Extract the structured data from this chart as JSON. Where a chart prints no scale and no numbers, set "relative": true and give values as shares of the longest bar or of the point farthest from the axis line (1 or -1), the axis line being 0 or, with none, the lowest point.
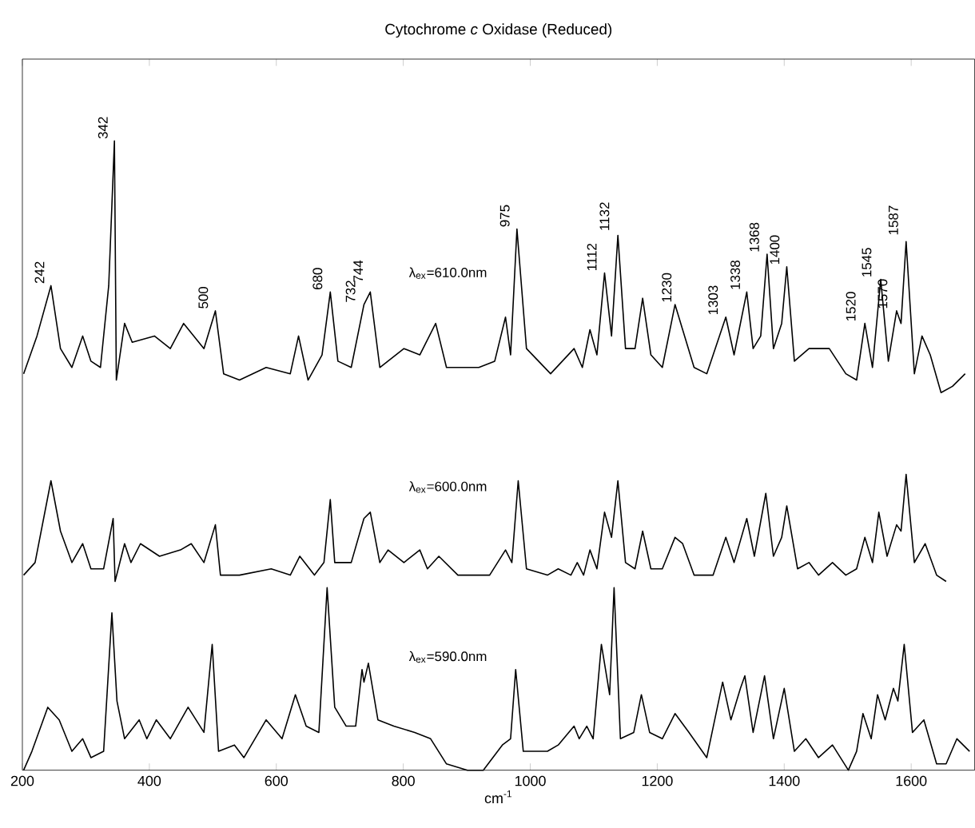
{
  "chart_data": {
    "type": "line",
    "title": "Cytochrome *c* Oxidase (Reduced)",
    "xlabel": "cm$^{-1}$",
    "relative": true,
    "xlim": [
      200,
      1700
    ],
    "xticks": [
      200,
      400,
      600,
      800,
      1000,
      1200,
      1400,
      1600
    ],
    "series": [
      {
        "name": "λ$_{ex}$=610.0nm",
        "color": "#000000",
        "x": [
          202,
          223,
          245,
          260,
          278,
          295,
          308,
          323,
          336,
          345,
          348,
          361,
          373,
          408,
          433,
          454,
          486,
          504,
          517,
          542,
          584,
          622,
          635,
          650,
          672,
          685,
          697,
          718,
          738,
          748,
          763,
          801,
          826,
          851,
          868,
          919,
          944,
          961,
          969,
          979,
          994,
          1032,
          1069,
          1082,
          1094,
          1105,
          1117,
          1128,
          1138,
          1150,
          1165,
          1177,
          1190,
          1208,
          1228,
          1240,
          1258,
          1278,
          1308,
          1321,
          1341,
          1351,
          1363,
          1373,
          1383,
          1396,
          1404,
          1416,
          1439,
          1471,
          1497,
          1514,
          1527,
          1539,
          1552,
          1564,
          1577,
          1584,
          1592,
          1605,
          1617,
          1630,
          1647,
          1665,
          1685
        ],
        "values": [
          0.63,
          0.69,
          0.77,
          0.67,
          0.64,
          0.69,
          0.65,
          0.64,
          0.77,
          1.0,
          0.62,
          0.71,
          0.68,
          0.69,
          0.67,
          0.71,
          0.67,
          0.73,
          0.63,
          0.62,
          0.64,
          0.63,
          0.69,
          0.62,
          0.66,
          0.76,
          0.65,
          0.64,
          0.74,
          0.76,
          0.64,
          0.67,
          0.66,
          0.71,
          0.64,
          0.64,
          0.65,
          0.72,
          0.66,
          0.86,
          0.67,
          0.63,
          0.67,
          0.64,
          0.7,
          0.66,
          0.79,
          0.69,
          0.85,
          0.67,
          0.67,
          0.75,
          0.66,
          0.64,
          0.74,
          0.7,
          0.64,
          0.63,
          0.72,
          0.66,
          0.76,
          0.67,
          0.69,
          0.82,
          0.67,
          0.71,
          0.8,
          0.65,
          0.67,
          0.67,
          0.63,
          0.62,
          0.71,
          0.64,
          0.78,
          0.65,
          0.73,
          0.71,
          0.84,
          0.63,
          0.69,
          0.66,
          0.6,
          0.61,
          0.63
        ]
      },
      {
        "name": "λ$_{ex}$=600.0nm",
        "color": "#000000",
        "x": [
          202,
          220,
          245,
          260,
          278,
          295,
          308,
          328,
          343,
          346,
          361,
          371,
          386,
          416,
          449,
          466,
          486,
          504,
          512,
          542,
          592,
          622,
          637,
          660,
          675,
          685,
          692,
          718,
          738,
          748,
          763,
          776,
          801,
          826,
          838,
          856,
          886,
          936,
          961,
          971,
          981,
          994,
          1027,
          1044,
          1064,
          1074,
          1084,
          1094,
          1105,
          1117,
          1128,
          1138,
          1150,
          1165,
          1177,
          1190,
          1208,
          1228,
          1240,
          1258,
          1288,
          1308,
          1321,
          1341,
          1353,
          1371,
          1383,
          1396,
          1404,
          1421,
          1439,
          1454,
          1476,
          1497,
          1514,
          1527,
          1539,
          1549,
          1562,
          1577,
          1584,
          1592,
          1605,
          1622,
          1640,
          1655
        ],
        "values": [
          0.31,
          0.33,
          0.46,
          0.38,
          0.33,
          0.36,
          0.32,
          0.32,
          0.4,
          0.3,
          0.36,
          0.33,
          0.36,
          0.34,
          0.35,
          0.36,
          0.33,
          0.39,
          0.31,
          0.31,
          0.32,
          0.31,
          0.34,
          0.31,
          0.33,
          0.43,
          0.33,
          0.33,
          0.4,
          0.41,
          0.33,
          0.35,
          0.33,
          0.35,
          0.32,
          0.34,
          0.31,
          0.31,
          0.35,
          0.33,
          0.46,
          0.32,
          0.31,
          0.32,
          0.31,
          0.33,
          0.31,
          0.35,
          0.32,
          0.41,
          0.37,
          0.46,
          0.33,
          0.32,
          0.38,
          0.32,
          0.32,
          0.37,
          0.36,
          0.31,
          0.31,
          0.37,
          0.33,
          0.4,
          0.34,
          0.44,
          0.34,
          0.37,
          0.42,
          0.32,
          0.33,
          0.31,
          0.33,
          0.31,
          0.32,
          0.37,
          0.33,
          0.41,
          0.34,
          0.39,
          0.38,
          0.47,
          0.33,
          0.36,
          0.31,
          0.3
        ]
      },
      {
        "name": "λ$_{ex}$=590.0nm",
        "color": "#000000",
        "x": [
          202,
          215,
          240,
          258,
          278,
          295,
          308,
          328,
          341,
          349,
          361,
          384,
          396,
          411,
          433,
          461,
          486,
          499,
          509,
          534,
          549,
          584,
          609,
          630,
          647,
          667,
          680,
          692,
          710,
          725,
          735,
          738,
          745,
          760,
          785,
          818,
          843,
          868,
          901,
          926,
          956,
          969,
          977,
          989,
          1027,
          1044,
          1069,
          1077,
          1089,
          1099,
          1112,
          1125,
          1132,
          1142,
          1163,
          1175,
          1188,
          1208,
          1228,
          1250,
          1278,
          1303,
          1316,
          1331,
          1338,
          1351,
          1369,
          1383,
          1400,
          1416,
          1434,
          1454,
          1476,
          1501,
          1514,
          1524,
          1537,
          1547,
          1559,
          1572,
          1579,
          1589,
          1602,
          1620,
          1640,
          1655,
          1672,
          1692
        ],
        "values": [
          0.0,
          0.03,
          0.1,
          0.08,
          0.03,
          0.05,
          0.02,
          0.03,
          0.25,
          0.11,
          0.05,
          0.08,
          0.05,
          0.08,
          0.05,
          0.1,
          0.06,
          0.2,
          0.03,
          0.04,
          0.02,
          0.08,
          0.05,
          0.12,
          0.07,
          0.06,
          0.29,
          0.1,
          0.07,
          0.07,
          0.16,
          0.14,
          0.17,
          0.08,
          0.07,
          0.06,
          0.05,
          0.01,
          0.0,
          0.0,
          0.04,
          0.05,
          0.16,
          0.03,
          0.03,
          0.04,
          0.07,
          0.05,
          0.07,
          0.05,
          0.2,
          0.12,
          0.29,
          0.05,
          0.06,
          0.12,
          0.06,
          0.05,
          0.09,
          0.06,
          0.02,
          0.14,
          0.08,
          0.13,
          0.15,
          0.06,
          0.15,
          0.05,
          0.13,
          0.03,
          0.05,
          0.02,
          0.04,
          0.0,
          0.03,
          0.09,
          0.05,
          0.12,
          0.08,
          0.13,
          0.11,
          0.2,
          0.06,
          0.08,
          0.01,
          0.01,
          0.05,
          0.03
        ]
      }
    ],
    "annotations": [
      {
        "text": "242",
        "x": 242,
        "y": 0.77
      },
      {
        "text": "342",
        "x": 342,
        "y": 1.0
      },
      {
        "text": "500",
        "x": 500,
        "y": 0.73
      },
      {
        "text": "680",
        "x": 680,
        "y": 0.76
      },
      {
        "text": "732",
        "x": 732,
        "y": 0.74
      },
      {
        "text": "744",
        "x": 744,
        "y": 0.76
      },
      {
        "text": "975",
        "x": 975,
        "y": 0.86
      },
      {
        "text": "1112",
        "x": 1112,
        "y": 0.79
      },
      {
        "text": "1132",
        "x": 1132,
        "y": 0.85
      },
      {
        "text": "1230",
        "x": 1230,
        "y": 0.74
      },
      {
        "text": "1303",
        "x": 1303,
        "y": 0.72
      },
      {
        "text": "1338",
        "x": 1338,
        "y": 0.76
      },
      {
        "text": "1368",
        "x": 1368,
        "y": 0.82
      },
      {
        "text": "1400",
        "x": 1400,
        "y": 0.8
      },
      {
        "text": "1520",
        "x": 1520,
        "y": 0.71
      },
      {
        "text": "1545",
        "x": 1545,
        "y": 0.78
      },
      {
        "text": "1570",
        "x": 1570,
        "y": 0.73
      },
      {
        "text": "1587",
        "x": 1587,
        "y": 0.84
      }
    ]
  }
}
